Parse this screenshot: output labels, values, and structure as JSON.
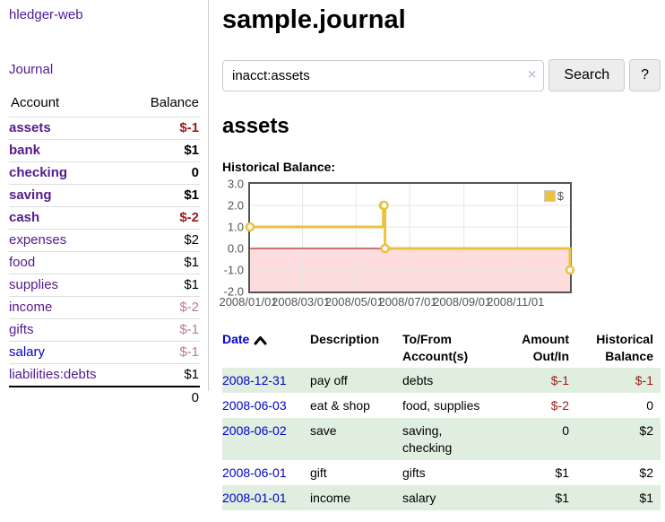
{
  "sidebar": {
    "app_title": "hledger-web",
    "journal_link": "Journal",
    "accounts_header": {
      "account": "Account",
      "balance": "Balance"
    },
    "accounts": [
      {
        "name": "assets",
        "balance": "$-1",
        "depth": 1
      },
      {
        "name": "bank",
        "balance": "$1",
        "depth": 2
      },
      {
        "name": "checking",
        "balance": "0",
        "depth": 3
      },
      {
        "name": "saving",
        "balance": "$1",
        "depth": 3
      },
      {
        "name": "cash",
        "balance": "$-2",
        "depth": 2
      },
      {
        "name": "expenses",
        "balance": "$2",
        "depth": 1
      },
      {
        "name": "food",
        "balance": "$1",
        "depth": 2
      },
      {
        "name": "supplies",
        "balance": "$1",
        "depth": 2
      },
      {
        "name": "income",
        "balance": "$-2",
        "depth": 1
      },
      {
        "name": "gifts",
        "balance": "$-1",
        "depth": 2
      },
      {
        "name": "salary",
        "balance": "$-1",
        "depth": 2
      },
      {
        "name": "liabilities:debts",
        "balance": "$1",
        "depth": 1
      }
    ],
    "total": "0"
  },
  "main": {
    "title": "sample.journal",
    "account_heading": "assets",
    "chart_label": "Historical Balance:"
  },
  "search": {
    "value": "inacct:assets",
    "clear_icon": "×",
    "search_button": "Search",
    "help_button": "?"
  },
  "chart_data": {
    "type": "line",
    "step": true,
    "title": "Historical Balance",
    "series": [
      {
        "name": "$",
        "color": "#edc240",
        "points": [
          [
            "2008-01-01",
            1
          ],
          [
            "2008-06-01",
            2
          ],
          [
            "2008-06-02",
            2
          ],
          [
            "2008-06-03",
            0
          ],
          [
            "2008-12-31",
            -1
          ]
        ]
      }
    ],
    "x_range": [
      "2008-01-01",
      "2008-12-31"
    ],
    "x_ticks": [
      "2008/01/01",
      "2008/03/01",
      "2008/05/01",
      "2008/07/01",
      "2008/09/01",
      "2008/11/01"
    ],
    "y_ticks": [
      3.0,
      2.0,
      1.0,
      0.0,
      -1.0,
      -2.0
    ],
    "ylim": [
      -2,
      3
    ],
    "grid": true,
    "legend": {
      "label": "$",
      "position": "top-right"
    },
    "colors": {
      "grid_line": "#e6e6e6",
      "border": "#545454",
      "negative_region": "#fcdcdc",
      "zero_line": "#8b0000",
      "marker_fill": "#ffffff"
    }
  },
  "register": {
    "headers": {
      "date": "Date",
      "description": "Description",
      "account_line1": "To/From",
      "account_line2": "Account(s)",
      "amount_line1": "Amount",
      "amount_line2": "Out/In",
      "balance_line1": "Historical",
      "balance_line2": "Balance"
    },
    "rows": [
      {
        "date": "2008-12-31",
        "description": "pay off",
        "accounts": "debts",
        "amount": "$-1",
        "balance": "$-1"
      },
      {
        "date": "2008-06-03",
        "description": "eat & shop",
        "accounts": "food, supplies",
        "amount": "$-2",
        "balance": "0"
      },
      {
        "date": "2008-06-02",
        "description": "save",
        "accounts": "saving, checking",
        "amount": "0",
        "balance": "$2"
      },
      {
        "date": "2008-06-01",
        "description": "gift",
        "accounts": "gifts",
        "amount": "$1",
        "balance": "$2"
      },
      {
        "date": "2008-01-01",
        "description": "income",
        "accounts": "salary",
        "amount": "$1",
        "balance": "$1"
      }
    ]
  },
  "colors": {
    "link_purple": "#551a8b",
    "link_blue": "#0000cc",
    "negative_strong": "#9d1a1a",
    "negative_soft": "#c07c8a",
    "row_stripe_green": "#dfeedf",
    "series_yellow": "#edc240"
  }
}
